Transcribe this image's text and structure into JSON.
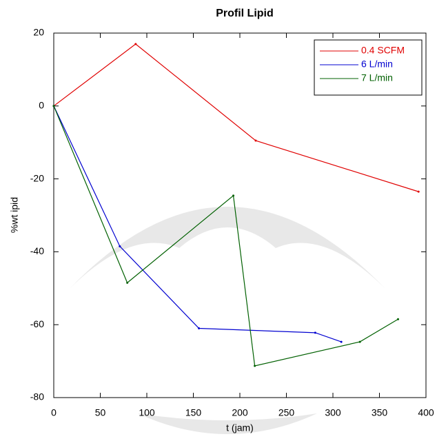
{
  "chart_data": {
    "type": "line",
    "title": "Profil Lipid",
    "x_label": "t (jam)",
    "y_label": "%wt ipid",
    "xlim": [
      0,
      400
    ],
    "xticks": [
      0,
      50,
      100,
      150,
      200,
      250,
      300,
      350,
      400
    ],
    "ylim": [
      -80,
      20
    ],
    "yticks": [
      20,
      0,
      -20,
      -40,
      -60,
      -80
    ],
    "legend": "upper right",
    "series": [
      {
        "name": "0.4 SCFM",
        "color": "#e00000",
        "x": [
          0,
          88,
          217,
          392
        ],
        "values": [
          0,
          17,
          -9.5,
          -23.5
        ]
      },
      {
        "name": "6 L/min",
        "color": "#0000d0",
        "x": [
          0,
          71,
          156,
          281,
          309
        ],
        "values": [
          0,
          -38.5,
          -61,
          -62.2,
          -64.7
        ]
      },
      {
        "name": "7 L/min",
        "color": "#006000",
        "x": [
          0,
          79,
          193,
          216,
          329,
          370
        ],
        "values": [
          0,
          -48.5,
          -24.6,
          -71.3,
          -64.7,
          -58.5
        ]
      }
    ]
  }
}
